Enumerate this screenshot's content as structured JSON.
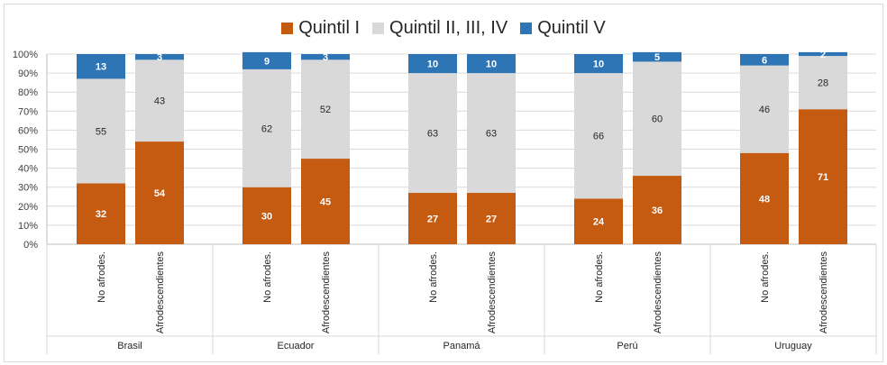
{
  "chart_data": {
    "type": "bar",
    "stacked": true,
    "series": [
      {
        "name": "Quintil I",
        "color": "#c55a11",
        "values": [
          32,
          54,
          30,
          45,
          27,
          27,
          24,
          36,
          48,
          71
        ]
      },
      {
        "name": "Quintil II, III, IV",
        "color": "#d9d9d9",
        "values": [
          55,
          43,
          62,
          52,
          63,
          63,
          66,
          60,
          46,
          28
        ]
      },
      {
        "name": "Quintil V",
        "color": "#2e75b6",
        "values": [
          13,
          3,
          9,
          3,
          10,
          10,
          10,
          5,
          6,
          2
        ]
      }
    ],
    "groups": [
      {
        "label": "Brasil",
        "categories": [
          "No afrodes.",
          "Afrodescendientes"
        ]
      },
      {
        "label": "Ecuador",
        "categories": [
          "No afrodes.",
          "Afrodescendientes"
        ]
      },
      {
        "label": "Panamá",
        "categories": [
          "No afrodes.",
          "Afrodescendientes"
        ]
      },
      {
        "label": "Perú",
        "categories": [
          "No afrodes.",
          "Afrodescendientes"
        ]
      },
      {
        "label": "Uruguay",
        "categories": [
          "No afrodes.",
          "Afrodescendientes"
        ]
      }
    ],
    "y_ticks": [
      "0%",
      "10%",
      "20%",
      "30%",
      "40%",
      "50%",
      "60%",
      "70%",
      "80%",
      "90%",
      "100%"
    ],
    "ylim": [
      0,
      100
    ],
    "grid": true,
    "legend_position": "top"
  }
}
